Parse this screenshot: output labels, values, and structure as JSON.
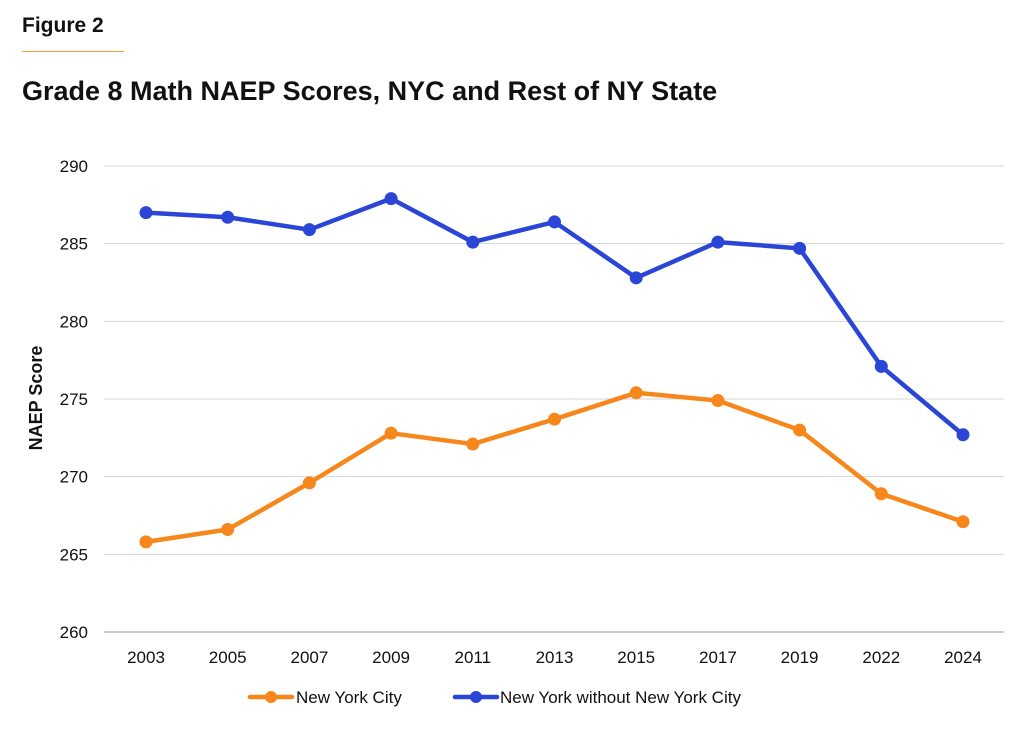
{
  "header": {
    "figure_label": "Figure 2"
  },
  "chart_data": {
    "type": "line",
    "title": "Grade 8 Math NAEP Scores, NYC and Rest of NY State",
    "xlabel": "",
    "ylabel": "NAEP Score",
    "categories": [
      "2003",
      "2005",
      "2007",
      "2009",
      "2011",
      "2013",
      "2015",
      "2017",
      "2019",
      "2022",
      "2024"
    ],
    "ylim": [
      260,
      290
    ],
    "yticks": [
      260,
      265,
      270,
      275,
      280,
      285,
      290
    ],
    "grid": "horizontal",
    "legend_position": "bottom",
    "series": [
      {
        "name": "New York City",
        "color": "#f7861b",
        "values": [
          265.8,
          266.6,
          269.6,
          272.8,
          272.1,
          273.7,
          275.4,
          274.9,
          273.0,
          268.9,
          267.1
        ]
      },
      {
        "name": "New York without New York City",
        "color": "#2b46d6",
        "values": [
          287.0,
          286.7,
          285.9,
          287.9,
          285.1,
          286.4,
          282.8,
          285.1,
          284.7,
          277.1,
          272.7
        ]
      }
    ]
  }
}
